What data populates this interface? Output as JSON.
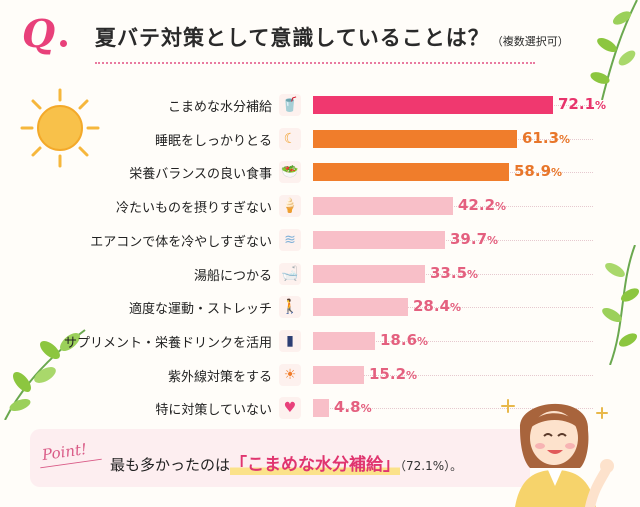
{
  "header": {
    "q_mark": "Q",
    "title": "夏バテ対策として意識していることは？",
    "title_note": "（複数選択可）"
  },
  "chart_data": {
    "type": "bar",
    "orientation": "horizontal",
    "unit": "%",
    "xlim": [
      0,
      100
    ],
    "categories": [
      "こまめな水分補給",
      "睡眠をしっかりとる",
      "栄養バランスの良い食事",
      "冷たいものを摂りすぎない",
      "エアコンで体を冷やしすぎない",
      "湯船につかる",
      "適度な運動・ストレッチ",
      "サプリメント・栄養ドリンクを活用",
      "紫外線対策をする",
      "特に対策していない"
    ],
    "values": [
      72.1,
      61.3,
      58.9,
      42.2,
      39.7,
      33.5,
      28.4,
      18.6,
      15.2,
      4.8
    ],
    "value_labels": [
      "72.1",
      "61.3",
      "58.9",
      "42.2",
      "39.7",
      "33.5",
      "28.4",
      "18.6",
      "15.2",
      "4.8"
    ],
    "value_suffix": "%",
    "icons": [
      "water-bottle-icon",
      "moon-sleep-icon",
      "salad-bowl-icon",
      "ice-cream-icon",
      "air-conditioner-icon",
      "bathtub-icon",
      "walking-person-icon",
      "supplement-bottle-icon",
      "sun-icon",
      "heart-icon"
    ],
    "bar_colors": [
      "#f0386f",
      "#f07d2b",
      "#f07d2b",
      "#f8bfc8",
      "#f8bfc8",
      "#f8bfc8",
      "#f8bfc8",
      "#f8bfc8",
      "#f8bfc8",
      "#f8bfc8"
    ],
    "value_colors": [
      "#e8346c",
      "#e8762a",
      "#e8762a",
      "#e4607f",
      "#e4607f",
      "#e4607f",
      "#e4607f",
      "#e4607f",
      "#e4607f",
      "#e4607f"
    ]
  },
  "point": {
    "tag": "Point!",
    "text_before": "最も多かったのは",
    "highlight": "「こまめな水分補給」",
    "text_after": "（72.1%）。"
  },
  "colors": {
    "accent_pink": "#e8407a",
    "accent_orange": "#f07d2b",
    "bar_light": "#f8bfc8",
    "point_bg": "#fdeef0",
    "leaf_green": "#8cc63f"
  }
}
